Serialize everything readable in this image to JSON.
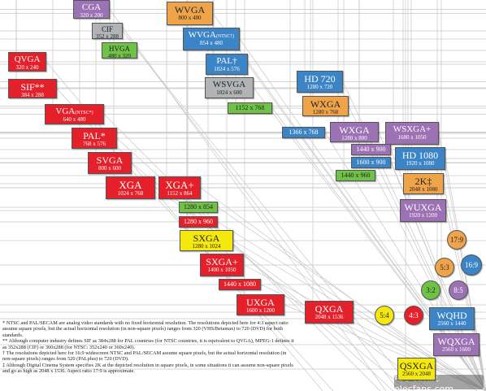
{
  "colors": {
    "red": "#e4212b",
    "purple": "#9c72b4",
    "blue": "#3b84c6",
    "gray": "#b1b3b5",
    "green": "#6fc245",
    "yellow": "#f4e80e",
    "orange": "#f0a44a",
    "line": "#c7c7c7"
  },
  "boxes": [
    {
      "id": "cga",
      "name": "CGA",
      "res": "320 x 200",
      "color": "purple"
    },
    {
      "id": "cif",
      "name": "CIF",
      "res": "352 x 288",
      "color": "gray"
    },
    {
      "id": "hvga",
      "name": "HVGA",
      "res": "480 x 320",
      "color": "green"
    },
    {
      "id": "qvga",
      "name": "QVGA",
      "res": "320 x 240",
      "color": "red"
    },
    {
      "id": "sif",
      "name": "SIF**",
      "res": "384 x 288",
      "color": "red"
    },
    {
      "id": "wvga",
      "name": "WVGA",
      "res": "800 x 480",
      "color": "orange"
    },
    {
      "id": "wvga-ntsc",
      "name": "WVGA",
      "sup": "(NTSC†)",
      "res": "854 x 480",
      "color": "blue"
    },
    {
      "id": "pal-wide",
      "name": "PAL†",
      "res": "1024 x 576",
      "color": "blue"
    },
    {
      "id": "wsvga",
      "name": "WSVGA",
      "res": "1024 x 600",
      "color": "gray"
    },
    {
      "id": "vga",
      "name": "VGA",
      "sup": "(NTSC*)",
      "res": "640 x 480",
      "color": "red"
    },
    {
      "id": "pal",
      "name": "PAL*",
      "res": "768 x 576",
      "color": "red"
    },
    {
      "id": "svga",
      "name": "SVGA",
      "res": "800 x 600",
      "color": "red"
    },
    {
      "id": "xga",
      "name": "XGA",
      "res": "1024 x 768",
      "color": "red"
    },
    {
      "id": "xga-plus",
      "name": "XGA+",
      "res": "1152 x 864",
      "color": "red"
    },
    {
      "id": "r1152x768",
      "name": "1152 x 768",
      "color": "green",
      "single": true
    },
    {
      "id": "hd720",
      "name": "HD 720",
      "res": "1280 x 720",
      "color": "blue"
    },
    {
      "id": "wxga-orange",
      "name": "WXGA",
      "res": "1280 x 768",
      "color": "orange"
    },
    {
      "id": "r1366x768",
      "name": "1366 x 768",
      "color": "blue",
      "single": true
    },
    {
      "id": "wxga-purple",
      "name": "WXGA",
      "res": "1280 x 800",
      "color": "purple"
    },
    {
      "id": "wsxga-plus",
      "name": "WSXGA+",
      "res": "1680 x 1050",
      "color": "purple"
    },
    {
      "id": "r1440x900",
      "name": "1440 x 900",
      "color": "purple",
      "single": true
    },
    {
      "id": "r1600x900",
      "name": "1600 x 900",
      "color": "blue",
      "single": true
    },
    {
      "id": "r1440x960",
      "name": "1440 x 960",
      "color": "green",
      "single": true
    },
    {
      "id": "hd1080",
      "name": "HD 1080",
      "res": "1920 x 1080",
      "color": "blue"
    },
    {
      "id": "twok",
      "name": "2K‡",
      "res": "2048 x 1080",
      "color": "orange"
    },
    {
      "id": "r1280x854",
      "name": "1280 x 854",
      "color": "green",
      "single": true
    },
    {
      "id": "r1280x960",
      "name": "1280 x 960",
      "color": "red",
      "single": true
    },
    {
      "id": "wuxga",
      "name": "WUXGA",
      "res": "1920 x 1200",
      "color": "purple"
    },
    {
      "id": "sxga",
      "name": "SXGA",
      "res": "1280 x 1024",
      "color": "yellow"
    },
    {
      "id": "sxga-plus",
      "name": "SXGA+",
      "res": "1400 x 1050",
      "color": "red"
    },
    {
      "id": "r1440x1080",
      "name": "1440 x 1080",
      "color": "red",
      "single": true
    },
    {
      "id": "uxga",
      "name": "UXGA",
      "res": "1600 x 1200",
      "color": "red"
    },
    {
      "id": "qxga",
      "name": "QXGA",
      "res": "2048 x 1536",
      "color": "red"
    },
    {
      "id": "wqhd",
      "name": "WQHD",
      "res": "2560 x 1440",
      "color": "blue"
    },
    {
      "id": "wqxga",
      "name": "WQXGA",
      "res": "2560 x 1600",
      "color": "purple"
    },
    {
      "id": "qsxga",
      "name": "QSXGA",
      "res": "2560 x 2048",
      "color": "yellow"
    }
  ],
  "ratios": [
    {
      "id": "r17-9",
      "label": "17:9",
      "color": "orange"
    },
    {
      "id": "r5-3",
      "label": "5:3",
      "color": "orange"
    },
    {
      "id": "r16-9",
      "label": "16:9",
      "color": "blue"
    },
    {
      "id": "r3-2",
      "label": "3:2",
      "color": "green"
    },
    {
      "id": "r8-5",
      "label": "8:5",
      "color": "purple"
    },
    {
      "id": "r5-4",
      "label": "5:4",
      "color": "yellow"
    },
    {
      "id": "r4-3",
      "label": "4:3",
      "color": "red"
    }
  ],
  "notes": [
    "* NTSC and PAL/SECAM are analog video standards with no fixed horizontal resolution. The resolutions depicted here for 4:3 aspect ratio assume square pixels, but the actual horizontal resolution (in non-square pixels) ranges from 320 (VHS/Betamax) to 720 (DVD) for both standards.",
    "** Although computer industry defines SIF as 384x288 for PAL countries (for NTSC countries, it is equivalent to QVGA), MPEG-1 defines it as 352x288 (CIF) or 360x288 (for NTSC: 352x240 or 360x240).",
    "† The resolutions depicted here for 16:9 widescreen NTSC and PAL/SECAM assume square pixels, but the actual horizontal resolution (in non-square pixels) ranges from 520 (PALplus) to 720 (DVD).",
    "‡ Although Digital Cinema System specifies 2K at the depicted resolution in square pixels, in some situations it can assume non-square pixels and go as high as 2048 x 1536. Aspect ratio 17:9 is approximate."
  ],
  "watermark": "电子发烧友 elecfans.com"
}
